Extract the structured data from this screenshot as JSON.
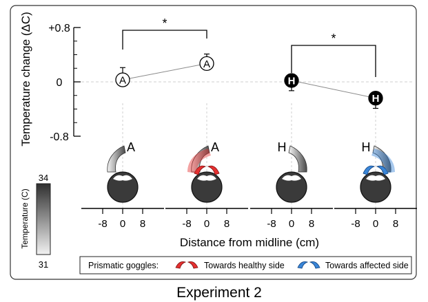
{
  "caption": "Experiment 2",
  "chart_data": {
    "type": "scatter",
    "ylabel": "Temperature change (ΔC)",
    "ylim": [
      -0.8,
      0.8
    ],
    "y_ticks": [
      "+0.8",
      "0",
      "-0.8"
    ],
    "y_tick_values": [
      0.8,
      0,
      -0.8
    ],
    "grid": false,
    "zero_line": true,
    "series": [
      {
        "name": "A",
        "fill": "#ffffff",
        "text_color": "#000000",
        "points": [
          {
            "y": 0.03,
            "error": 0.18
          },
          {
            "y": 0.27,
            "error": 0.14
          }
        ]
      },
      {
        "name": "H",
        "fill": "#000000",
        "text_color": "#ffffff",
        "points": [
          {
            "y": 0.02,
            "error": 0.15
          },
          {
            "y": -0.24,
            "error": 0.15
          }
        ]
      }
    ],
    "significance": [
      {
        "between": [
          "A-1",
          "A-2"
        ],
        "label": "*"
      },
      {
        "between": [
          "H-1",
          "H-2"
        ],
        "label": "*"
      }
    ],
    "panels": [
      {
        "label": "A",
        "goggles": "none"
      },
      {
        "label": "A",
        "goggles": "healthy"
      },
      {
        "label": "H",
        "goggles": "none"
      },
      {
        "label": "H",
        "goggles": "affected"
      }
    ],
    "panel_xticks": [
      "-8",
      "0",
      "8"
    ],
    "xlabel": "Distance from midline (cm)",
    "colorbar": {
      "label": "Temperature (C)",
      "max_label": "34",
      "min_label": "31",
      "max": 34,
      "min": 31
    }
  },
  "legend": {
    "title": "Prismatic goggles:",
    "items": [
      {
        "label": "Towards healthy side",
        "color": "#e53030"
      },
      {
        "label": "Towards affected side",
        "color": "#3a86d8"
      }
    ]
  }
}
